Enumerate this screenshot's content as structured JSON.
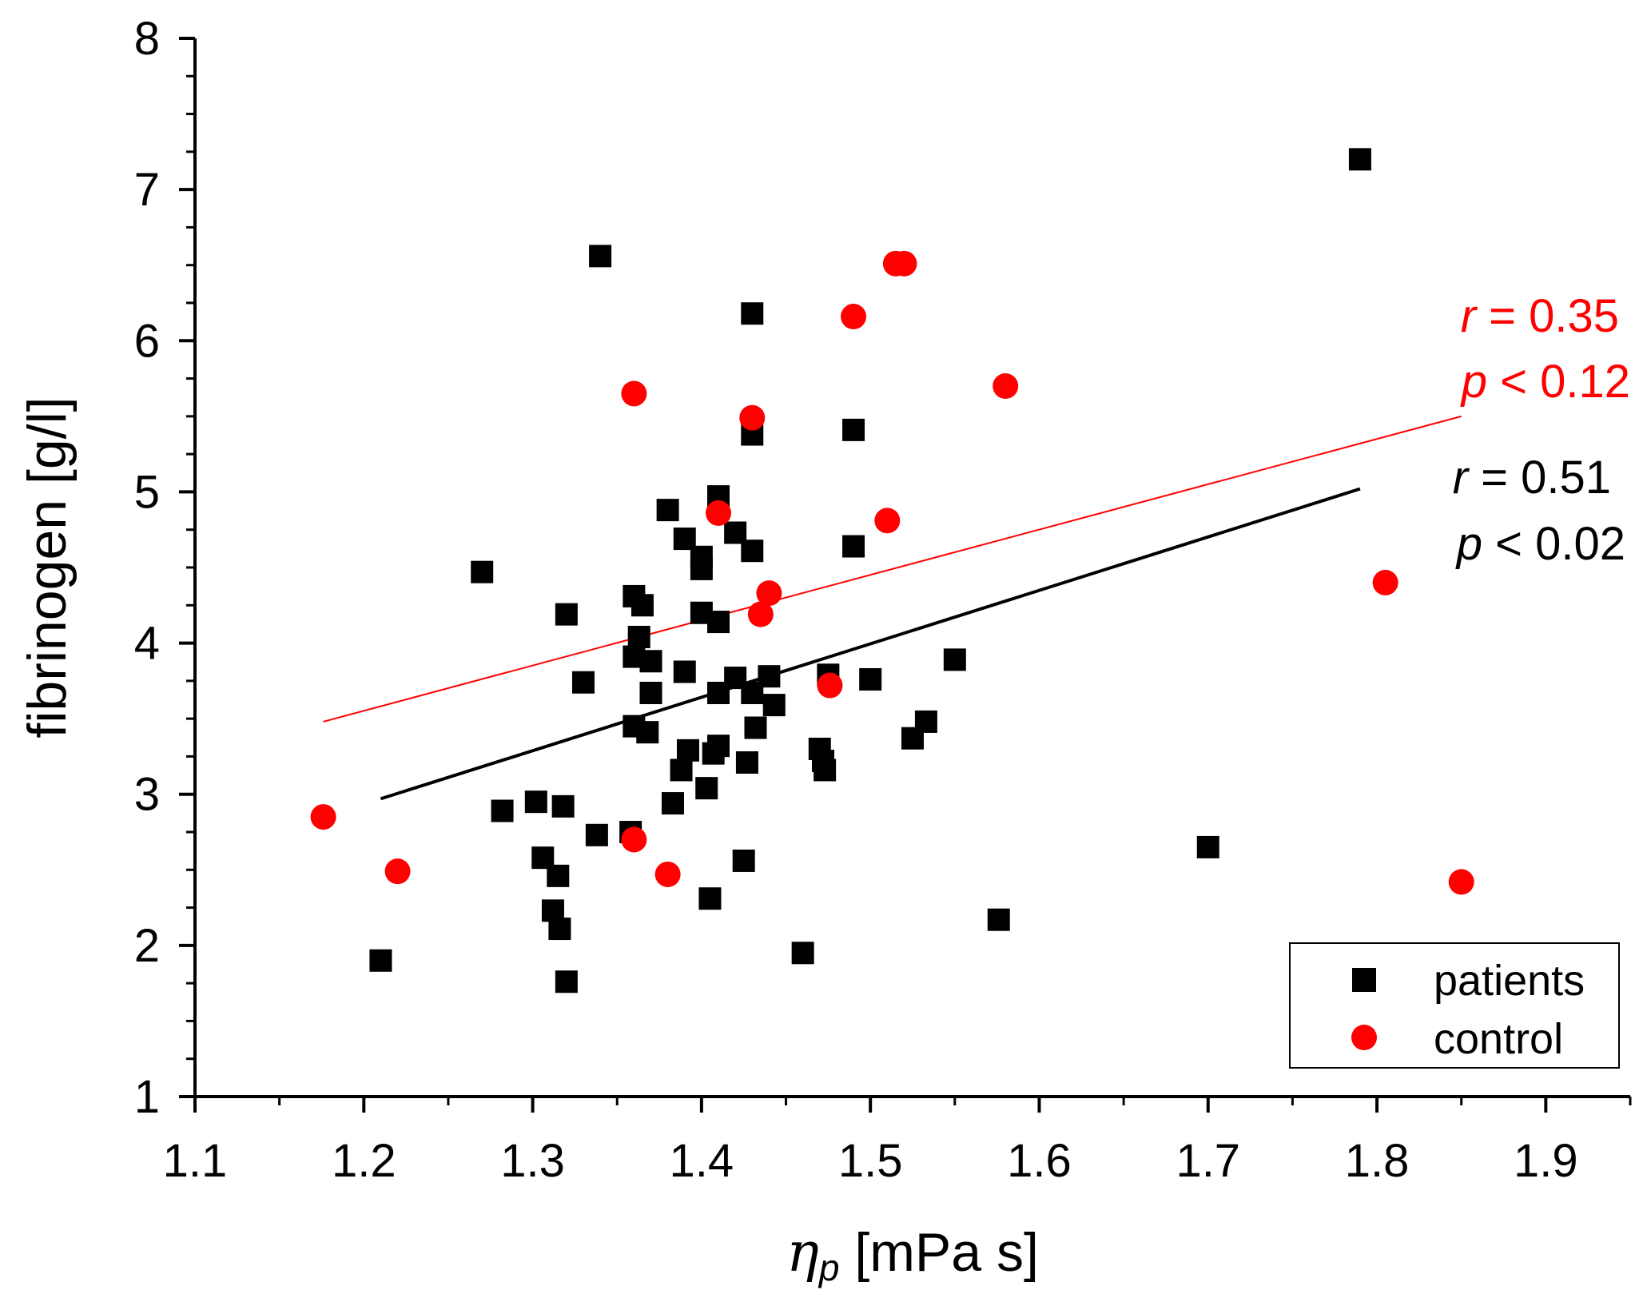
{
  "chart_data": {
    "type": "scatter",
    "title": "",
    "xlabel_symbol": "η",
    "xlabel_subscript": "p",
    "xlabel_unit": " [mPa s]",
    "ylabel": "fibrinogen [g/l]",
    "xlim": [
      1.1,
      1.95
    ],
    "ylim": [
      1,
      8
    ],
    "xticks": [
      1.1,
      1.2,
      1.3,
      1.4,
      1.5,
      1.6,
      1.7,
      1.8,
      1.9
    ],
    "xtick_labels": [
      "1.1",
      "1.2",
      "1.3",
      "1.4",
      "1.5",
      "1.6",
      "1.7",
      "1.8",
      "1.9"
    ],
    "yticks": [
      1,
      2,
      3,
      4,
      5,
      6,
      7,
      8
    ],
    "ytick_labels": [
      "1",
      "2",
      "3",
      "4",
      "5",
      "6",
      "7",
      "8"
    ],
    "grid": false,
    "legend_position": "bottom-right",
    "series": [
      {
        "name": "patients",
        "marker": "square",
        "color": "#000000",
        "points": [
          [
            1.21,
            1.9
          ],
          [
            1.27,
            4.47
          ],
          [
            1.282,
            2.89
          ],
          [
            1.302,
            2.95
          ],
          [
            1.306,
            2.58
          ],
          [
            1.312,
            2.23
          ],
          [
            1.315,
            2.46
          ],
          [
            1.316,
            2.11
          ],
          [
            1.318,
            2.92
          ],
          [
            1.32,
            1.76
          ],
          [
            1.32,
            4.19
          ],
          [
            1.33,
            3.74
          ],
          [
            1.338,
            2.73
          ],
          [
            1.34,
            6.56
          ],
          [
            1.358,
            2.75
          ],
          [
            1.36,
            3.91
          ],
          [
            1.36,
            4.31
          ],
          [
            1.36,
            3.45
          ],
          [
            1.363,
            4.04
          ],
          [
            1.365,
            4.25
          ],
          [
            1.368,
            3.41
          ],
          [
            1.37,
            3.88
          ],
          [
            1.37,
            3.67
          ],
          [
            1.38,
            4.88
          ],
          [
            1.383,
            2.94
          ],
          [
            1.388,
            3.16
          ],
          [
            1.39,
            3.81
          ],
          [
            1.39,
            4.69
          ],
          [
            1.392,
            3.29
          ],
          [
            1.4,
            4.57
          ],
          [
            1.4,
            4.49
          ],
          [
            1.4,
            4.2
          ],
          [
            1.403,
            3.04
          ],
          [
            1.405,
            2.31
          ],
          [
            1.407,
            3.27
          ],
          [
            1.41,
            4.97
          ],
          [
            1.41,
            4.14
          ],
          [
            1.41,
            3.67
          ],
          [
            1.41,
            3.32
          ],
          [
            1.42,
            4.73
          ],
          [
            1.42,
            3.77
          ],
          [
            1.425,
            2.56
          ],
          [
            1.427,
            3.21
          ],
          [
            1.43,
            6.18
          ],
          [
            1.43,
            5.38
          ],
          [
            1.43,
            4.61
          ],
          [
            1.43,
            3.67
          ],
          [
            1.432,
            3.44
          ],
          [
            1.44,
            3.78
          ],
          [
            1.443,
            3.59
          ],
          [
            1.46,
            1.95
          ],
          [
            1.47,
            3.3
          ],
          [
            1.472,
            3.22
          ],
          [
            1.473,
            3.16
          ],
          [
            1.475,
            3.79
          ],
          [
            1.49,
            5.41
          ],
          [
            1.49,
            4.64
          ],
          [
            1.5,
            3.76
          ],
          [
            1.525,
            3.37
          ],
          [
            1.533,
            3.48
          ],
          [
            1.55,
            3.89
          ],
          [
            1.576,
            2.17
          ],
          [
            1.7,
            2.65
          ],
          [
            1.79,
            7.2
          ]
        ]
      },
      {
        "name": "control",
        "marker": "circle",
        "color": "#ff0000",
        "points": [
          [
            1.176,
            2.85
          ],
          [
            1.22,
            2.49
          ],
          [
            1.36,
            5.65
          ],
          [
            1.36,
            2.7
          ],
          [
            1.38,
            2.47
          ],
          [
            1.41,
            4.86
          ],
          [
            1.43,
            5.49
          ],
          [
            1.435,
            4.19
          ],
          [
            1.44,
            4.33
          ],
          [
            1.476,
            3.72
          ],
          [
            1.49,
            6.16
          ],
          [
            1.51,
            4.81
          ],
          [
            1.515,
            6.51
          ],
          [
            1.52,
            6.51
          ],
          [
            1.58,
            5.7
          ],
          [
            1.805,
            4.4
          ],
          [
            1.85,
            2.42
          ]
        ]
      }
    ],
    "fit_lines": [
      {
        "series": "patients",
        "color": "#000000",
        "x": [
          1.21,
          1.79
        ],
        "y": [
          2.97,
          5.02
        ]
      },
      {
        "series": "control",
        "color": "#ff0000",
        "x": [
          1.176,
          1.85
        ],
        "y": [
          3.48,
          5.5
        ]
      }
    ],
    "annotations": [
      {
        "series": "control",
        "color": "#ff0000",
        "r_symbol": "r",
        "r_value": " = 0.35",
        "p_symbol": "p",
        "p_value": " < 0.12"
      },
      {
        "series": "patients",
        "color": "#000000",
        "r_symbol": "r",
        "r_value": " = 0.51",
        "p_symbol": "p",
        "p_value": " < 0.02"
      }
    ]
  }
}
